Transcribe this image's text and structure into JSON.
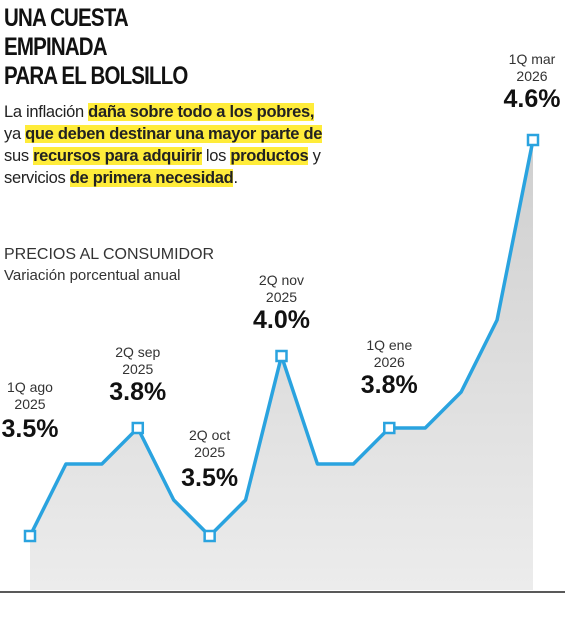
{
  "chart_data": {
    "type": "line",
    "title_lines": [
      "UNA CUESTA",
      "EMPINADA",
      "PARA EL BOLSILLO"
    ],
    "subtitle_segments": [
      {
        "text": "La inflación ",
        "highlight": false
      },
      {
        "text": "daña sobre todo a los pobres,",
        "highlight": true
      },
      {
        "text": " ya ",
        "highlight": false
      },
      {
        "text": "que deben destinar una mayor parte de",
        "highlight": true
      },
      {
        "text": " sus ",
        "highlight": false
      },
      {
        "text": "recursos para adquirir",
        "highlight": true
      },
      {
        "text": " los ",
        "highlight": false
      },
      {
        "text": "productos",
        "highlight": true
      },
      {
        "text": " y servicios ",
        "highlight": false
      },
      {
        "text": "de primera necesidad",
        "highlight": true
      },
      {
        "text": ".",
        "highlight": false
      }
    ],
    "axis_title": "PRECIOS AL CONSUMIDOR",
    "axis_subtitle": "Variación porcentual anual",
    "categories": [
      "1Q ago 2025",
      null,
      null,
      "2Q sep 2025",
      null,
      "2Q oct 2025",
      null,
      "2Q nov 2025",
      null,
      null,
      "1Q ene 2026",
      null,
      null,
      null,
      "1Q mar 2026"
    ],
    "values": [
      3.5,
      3.7,
      3.7,
      3.8,
      3.6,
      3.5,
      3.6,
      4.0,
      3.7,
      3.7,
      3.8,
      3.8,
      3.9,
      4.1,
      4.6
    ],
    "value_labels": [
      "3.5%",
      null,
      null,
      "3.8%",
      null,
      "3.5%",
      null,
      "4.0%",
      null,
      null,
      "3.8%",
      null,
      null,
      null,
      "4.6%"
    ],
    "color": "#2aa3df",
    "ylim": [
      3.35,
      4.8
    ]
  }
}
